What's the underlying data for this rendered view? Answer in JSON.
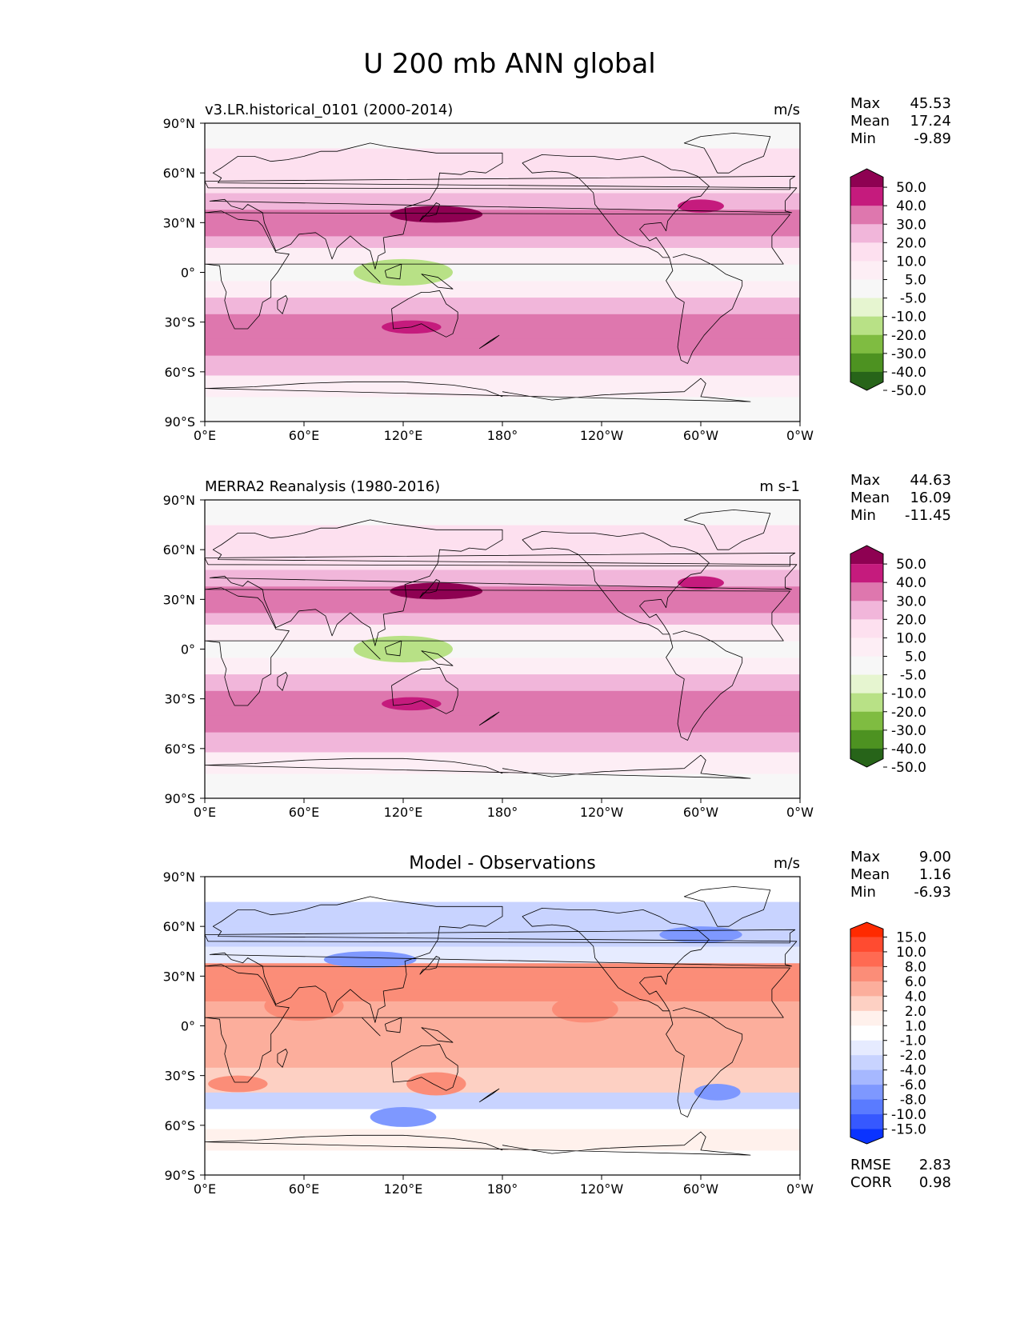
{
  "figure_title": "U 200 mb ANN global",
  "chart_data": [
    {
      "type": "heatmap",
      "panel": "test",
      "title": "v3.LR.historical_0101 (2000-2014)",
      "units": "m/s",
      "stats": {
        "labels": [
          "Max",
          "Mean",
          "Min"
        ],
        "values": [
          "45.53",
          "17.24",
          "-9.89"
        ]
      },
      "x_ticks": [
        "0°E",
        "60°E",
        "120°E",
        "180°",
        "120°W",
        "60°W",
        "0°W"
      ],
      "y_ticks": [
        "90°N",
        "60°N",
        "30°N",
        "0°",
        "30°S",
        "60°S",
        "90°S"
      ],
      "x_range": [
        0,
        360
      ],
      "y_range": [
        -90,
        90
      ],
      "colorbar": {
        "levels": [
          "50.0",
          "40.0",
          "30.0",
          "20.0",
          "10.0",
          "5.0",
          "-5.0",
          "-10.0",
          "-20.0",
          "-30.0",
          "-40.0",
          "-50.0"
        ],
        "colors": [
          "#8e0152",
          "#c51b7d",
          "#de77ae",
          "#f1b6da",
          "#fde0ef",
          "#fdeef5",
          "#f7f7f7",
          "#e6f5d0",
          "#b8e186",
          "#7fbc41",
          "#4d9221",
          "#276419"
        ]
      }
    },
    {
      "type": "heatmap",
      "panel": "reference",
      "title": "MERRA2 Reanalysis (1980-2016)",
      "units": "m s-1",
      "stats": {
        "labels": [
          "Max",
          "Mean",
          "Min"
        ],
        "values": [
          "44.63",
          "16.09",
          "-11.45"
        ]
      },
      "x_ticks": [
        "0°E",
        "60°E",
        "120°E",
        "180°",
        "120°W",
        "60°W",
        "0°W"
      ],
      "y_ticks": [
        "90°N",
        "60°N",
        "30°N",
        "0°",
        "30°S",
        "60°S",
        "90°S"
      ],
      "x_range": [
        0,
        360
      ],
      "y_range": [
        -90,
        90
      ],
      "colorbar": {
        "levels": [
          "50.0",
          "40.0",
          "30.0",
          "20.0",
          "10.0",
          "5.0",
          "-5.0",
          "-10.0",
          "-20.0",
          "-30.0",
          "-40.0",
          "-50.0"
        ],
        "colors": [
          "#8e0152",
          "#c51b7d",
          "#de77ae",
          "#f1b6da",
          "#fde0ef",
          "#fdeef5",
          "#f7f7f7",
          "#e6f5d0",
          "#b8e186",
          "#7fbc41",
          "#4d9221",
          "#276419"
        ]
      }
    },
    {
      "type": "heatmap",
      "panel": "difference",
      "title": "Model - Observations",
      "units": "m/s",
      "stats": {
        "labels": [
          "Max",
          "Mean",
          "Min"
        ],
        "values": [
          "9.00",
          "1.16",
          "-6.93"
        ]
      },
      "metrics": {
        "labels": [
          "RMSE",
          "CORR"
        ],
        "values": [
          "2.83",
          "0.98"
        ]
      },
      "x_ticks": [
        "0°E",
        "60°E",
        "120°E",
        "180°",
        "120°W",
        "60°W",
        "0°W"
      ],
      "y_ticks": [
        "90°N",
        "60°N",
        "30°N",
        "0°",
        "30°S",
        "60°S",
        "90°S"
      ],
      "x_range": [
        0,
        360
      ],
      "y_range": [
        -90,
        90
      ],
      "colorbar": {
        "levels": [
          "15.0",
          "10.0",
          "8.0",
          "6.0",
          "4.0",
          "2.0",
          "1.0",
          "-1.0",
          "-2.0",
          "-4.0",
          "-6.0",
          "-8.0",
          "-10.0",
          "-15.0"
        ],
        "colors": [
          "#ff2a00",
          "#ff4b30",
          "#ff6a52",
          "#fb8d78",
          "#fcae9c",
          "#fdd0c3",
          "#fff1ec",
          "#ffffff",
          "#e6ebff",
          "#c8d3ff",
          "#a6b8ff",
          "#7e98ff",
          "#5a7bff",
          "#3658ff",
          "#0a33ff"
        ]
      }
    }
  ]
}
